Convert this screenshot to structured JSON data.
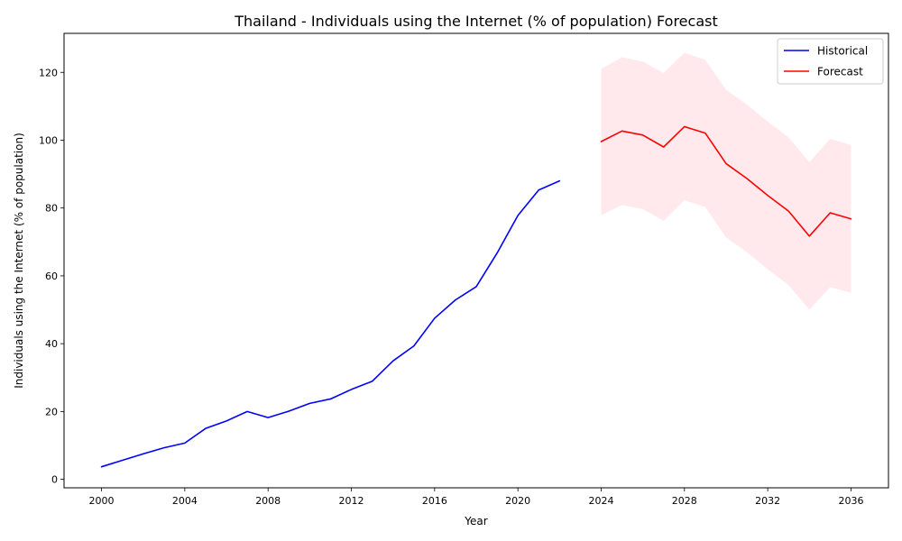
{
  "chart_data": {
    "type": "line",
    "title": "Thailand - Individuals using the Internet (% of population) Forecast",
    "xlabel": "Year",
    "ylabel": "Individuals using the Internet (% of population)",
    "xlim": [
      1998.2,
      2037.8
    ],
    "ylim": [
      -2.5,
      131.5
    ],
    "xticks": [
      2000,
      2004,
      2008,
      2012,
      2016,
      2020,
      2024,
      2028,
      2032,
      2036
    ],
    "yticks": [
      0,
      20,
      40,
      60,
      80,
      100,
      120
    ],
    "grid": false,
    "legend_position": "top-right",
    "series": [
      {
        "name": "Historical",
        "color": "#0000ff",
        "x": [
          2000,
          2001,
          2002,
          2003,
          2004,
          2005,
          2006,
          2007,
          2008,
          2009,
          2010,
          2011,
          2012,
          2013,
          2014,
          2015,
          2016,
          2017,
          2018,
          2019,
          2020,
          2021,
          2022
        ],
        "y": [
          3.7,
          5.6,
          7.5,
          9.3,
          10.7,
          15.0,
          17.2,
          20.0,
          18.2,
          20.1,
          22.4,
          23.7,
          26.5,
          28.9,
          34.9,
          39.3,
          47.5,
          52.9,
          56.8,
          66.7,
          77.8,
          85.3,
          88.0
        ]
      },
      {
        "name": "Forecast",
        "color": "#ff0000",
        "x": [
          2024,
          2025,
          2026,
          2027,
          2028,
          2029,
          2030,
          2031,
          2032,
          2033,
          2034,
          2035,
          2036
        ],
        "y": [
          99.6,
          102.7,
          101.5,
          98.0,
          104.0,
          102.1,
          93.1,
          88.7,
          83.7,
          79.1,
          71.7,
          78.6,
          76.8
        ]
      }
    ],
    "confidence_band": {
      "color": "#ffc0cb",
      "opacity": 0.35,
      "x": [
        2024,
        2025,
        2026,
        2027,
        2028,
        2029,
        2030,
        2031,
        2032,
        2033,
        2034,
        2035,
        2036
      ],
      "upper": [
        121.0,
        124.5,
        123.2,
        119.8,
        125.8,
        123.7,
        114.9,
        110.5,
        105.5,
        100.8,
        93.5,
        100.4,
        98.6
      ],
      "lower": [
        77.9,
        80.9,
        79.7,
        76.2,
        82.3,
        80.3,
        71.3,
        67.0,
        61.9,
        57.3,
        50.0,
        56.7,
        55.0
      ]
    }
  }
}
